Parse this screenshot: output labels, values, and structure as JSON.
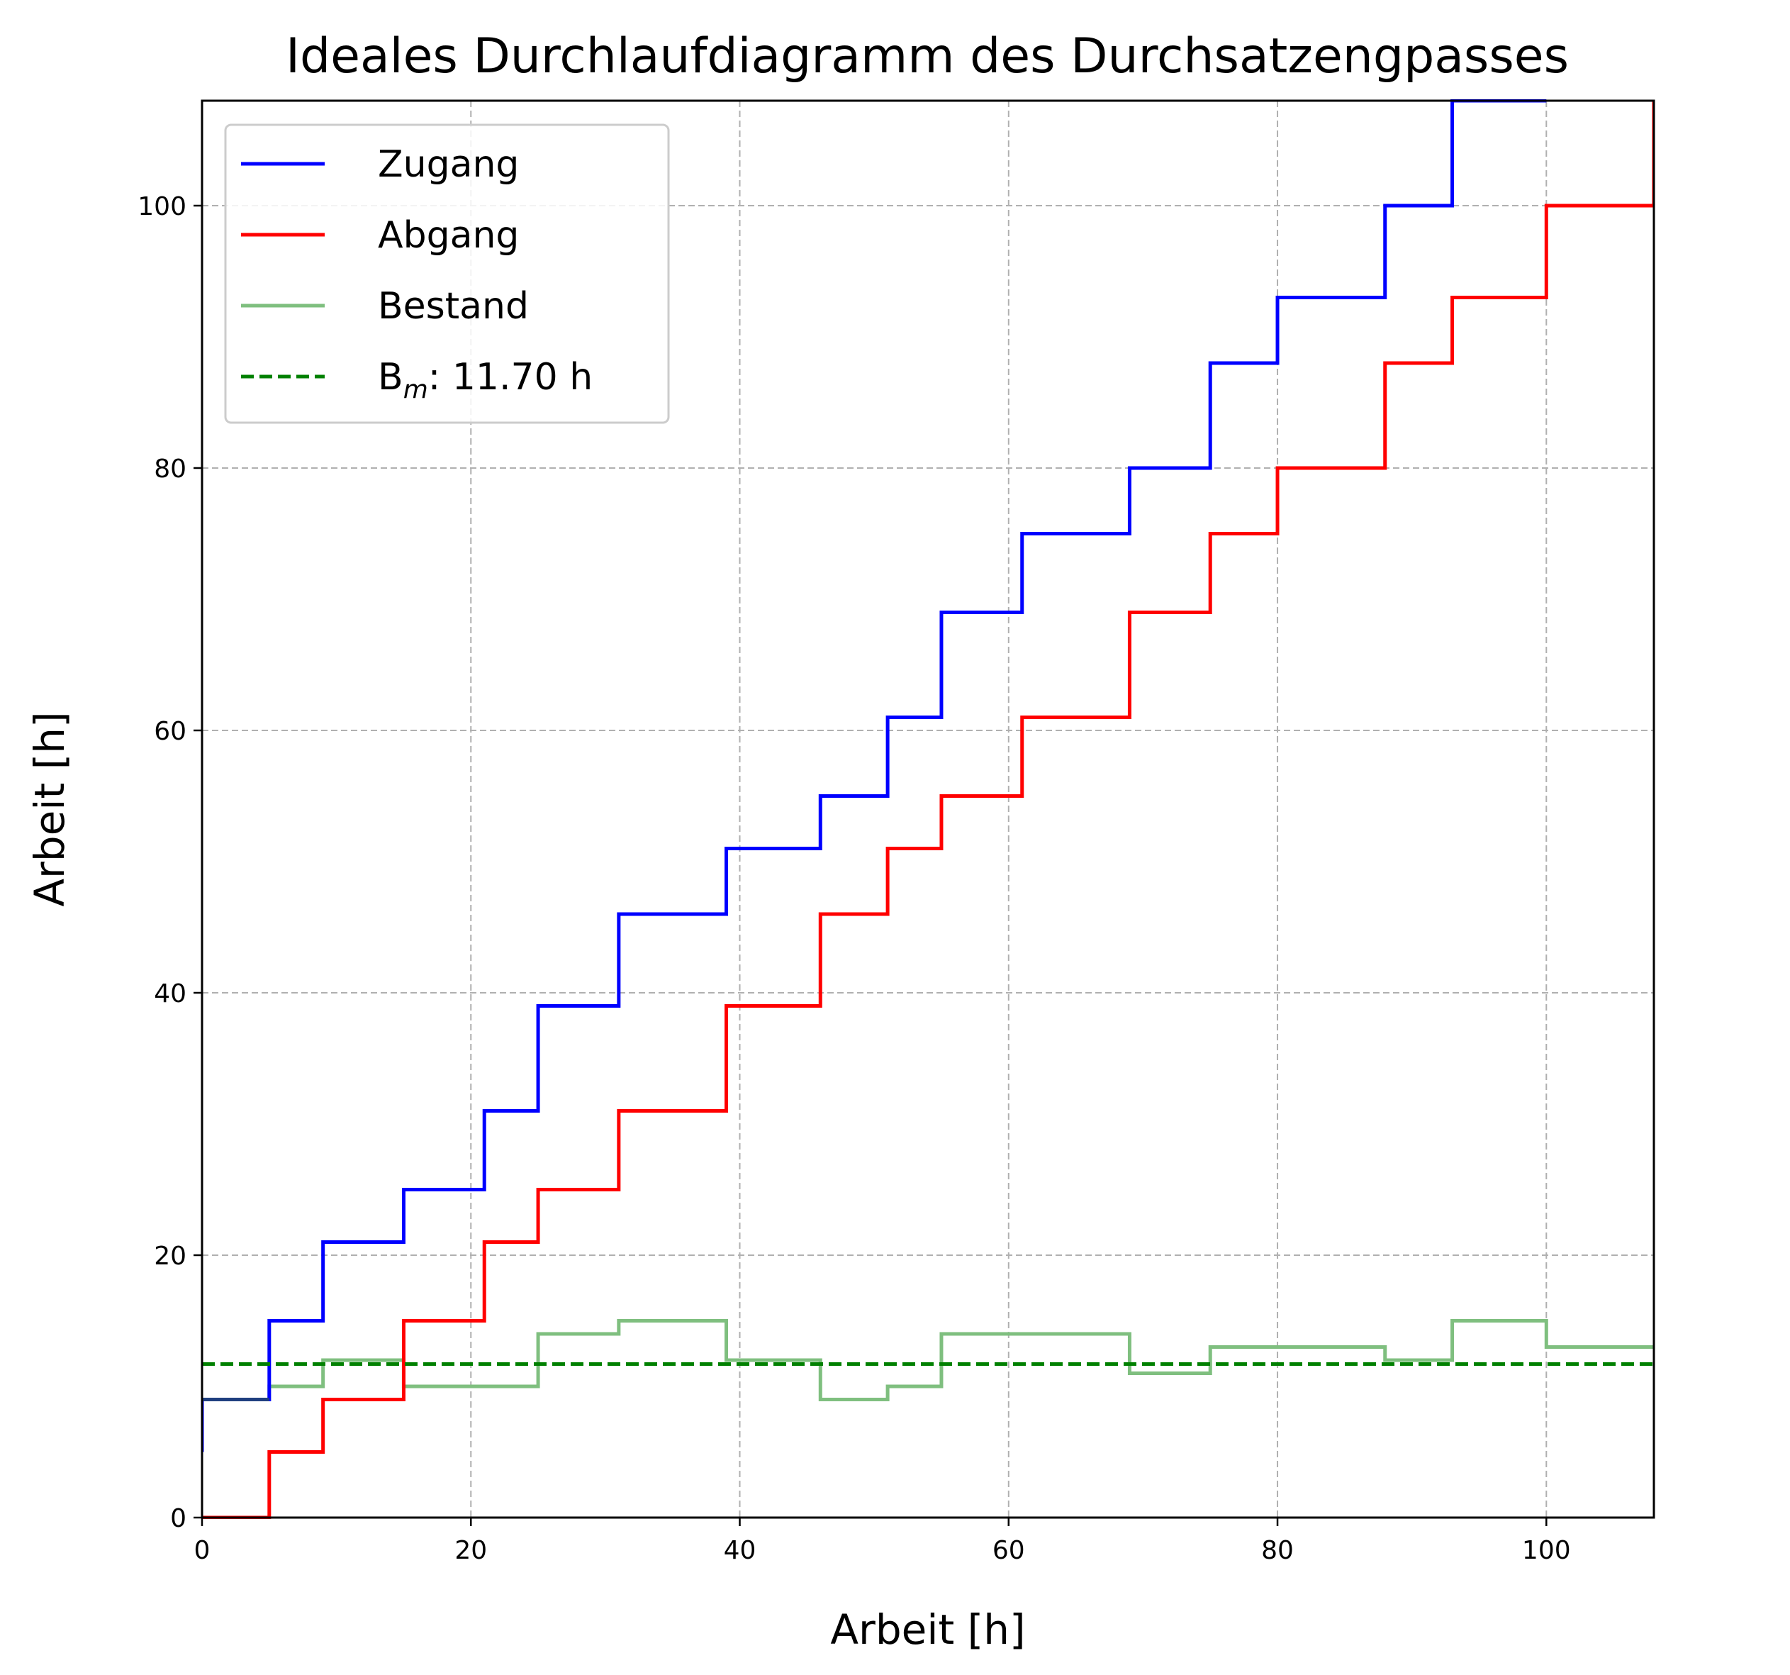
{
  "chart_data": {
    "type": "line",
    "title": "Ideales Durchlaufdiagramm des Durchsatzengpasses",
    "xlabel": "Arbeit [h]",
    "ylabel": "Arbeit [h]",
    "xlim": [
      0,
      108
    ],
    "ylim": [
      0,
      108
    ],
    "xticks": [
      0,
      20,
      40,
      60,
      80,
      100
    ],
    "yticks": [
      0,
      20,
      40,
      60,
      80,
      100
    ],
    "grid": true,
    "legend_position": "top-left",
    "series": [
      {
        "name": "Zugang",
        "color": "#0000ff",
        "step": true,
        "x": [
          0,
          5,
          9,
          15,
          21,
          25,
          31,
          39,
          46,
          51,
          55,
          61,
          69,
          75,
          80,
          88,
          93,
          100
        ],
        "y": [
          9,
          15,
          21,
          25,
          31,
          39,
          46,
          51,
          55,
          61,
          69,
          75,
          80,
          88,
          93,
          100,
          108,
          108
        ]
      },
      {
        "name": "Abgang",
        "color": "#ff0000",
        "step": true,
        "x": [
          0,
          5,
          9,
          15,
          21,
          25,
          31,
          39,
          46,
          51,
          55,
          61,
          69,
          75,
          80,
          88,
          93,
          100,
          108
        ],
        "y": [
          0,
          5,
          9,
          15,
          21,
          25,
          31,
          39,
          46,
          51,
          55,
          61,
          69,
          75,
          80,
          88,
          93,
          100,
          108
        ]
      },
      {
        "name": "Bestand",
        "color": "#7fbf7f",
        "step": true,
        "x": [
          0,
          5,
          9,
          15,
          25,
          31,
          39,
          46,
          51,
          55,
          61,
          69,
          75,
          80,
          88,
          93,
          100,
          108
        ],
        "y": [
          9,
          10,
          12,
          10,
          14,
          15,
          12,
          9,
          10,
          14,
          14,
          11,
          13,
          13,
          12,
          15,
          13,
          13
        ]
      }
    ],
    "reference_line": {
      "name": "B",
      "name_subscript": "m",
      "name_suffix": ": 11.70 h",
      "color": "#008000",
      "y": 11.7,
      "style": "dashed"
    }
  }
}
